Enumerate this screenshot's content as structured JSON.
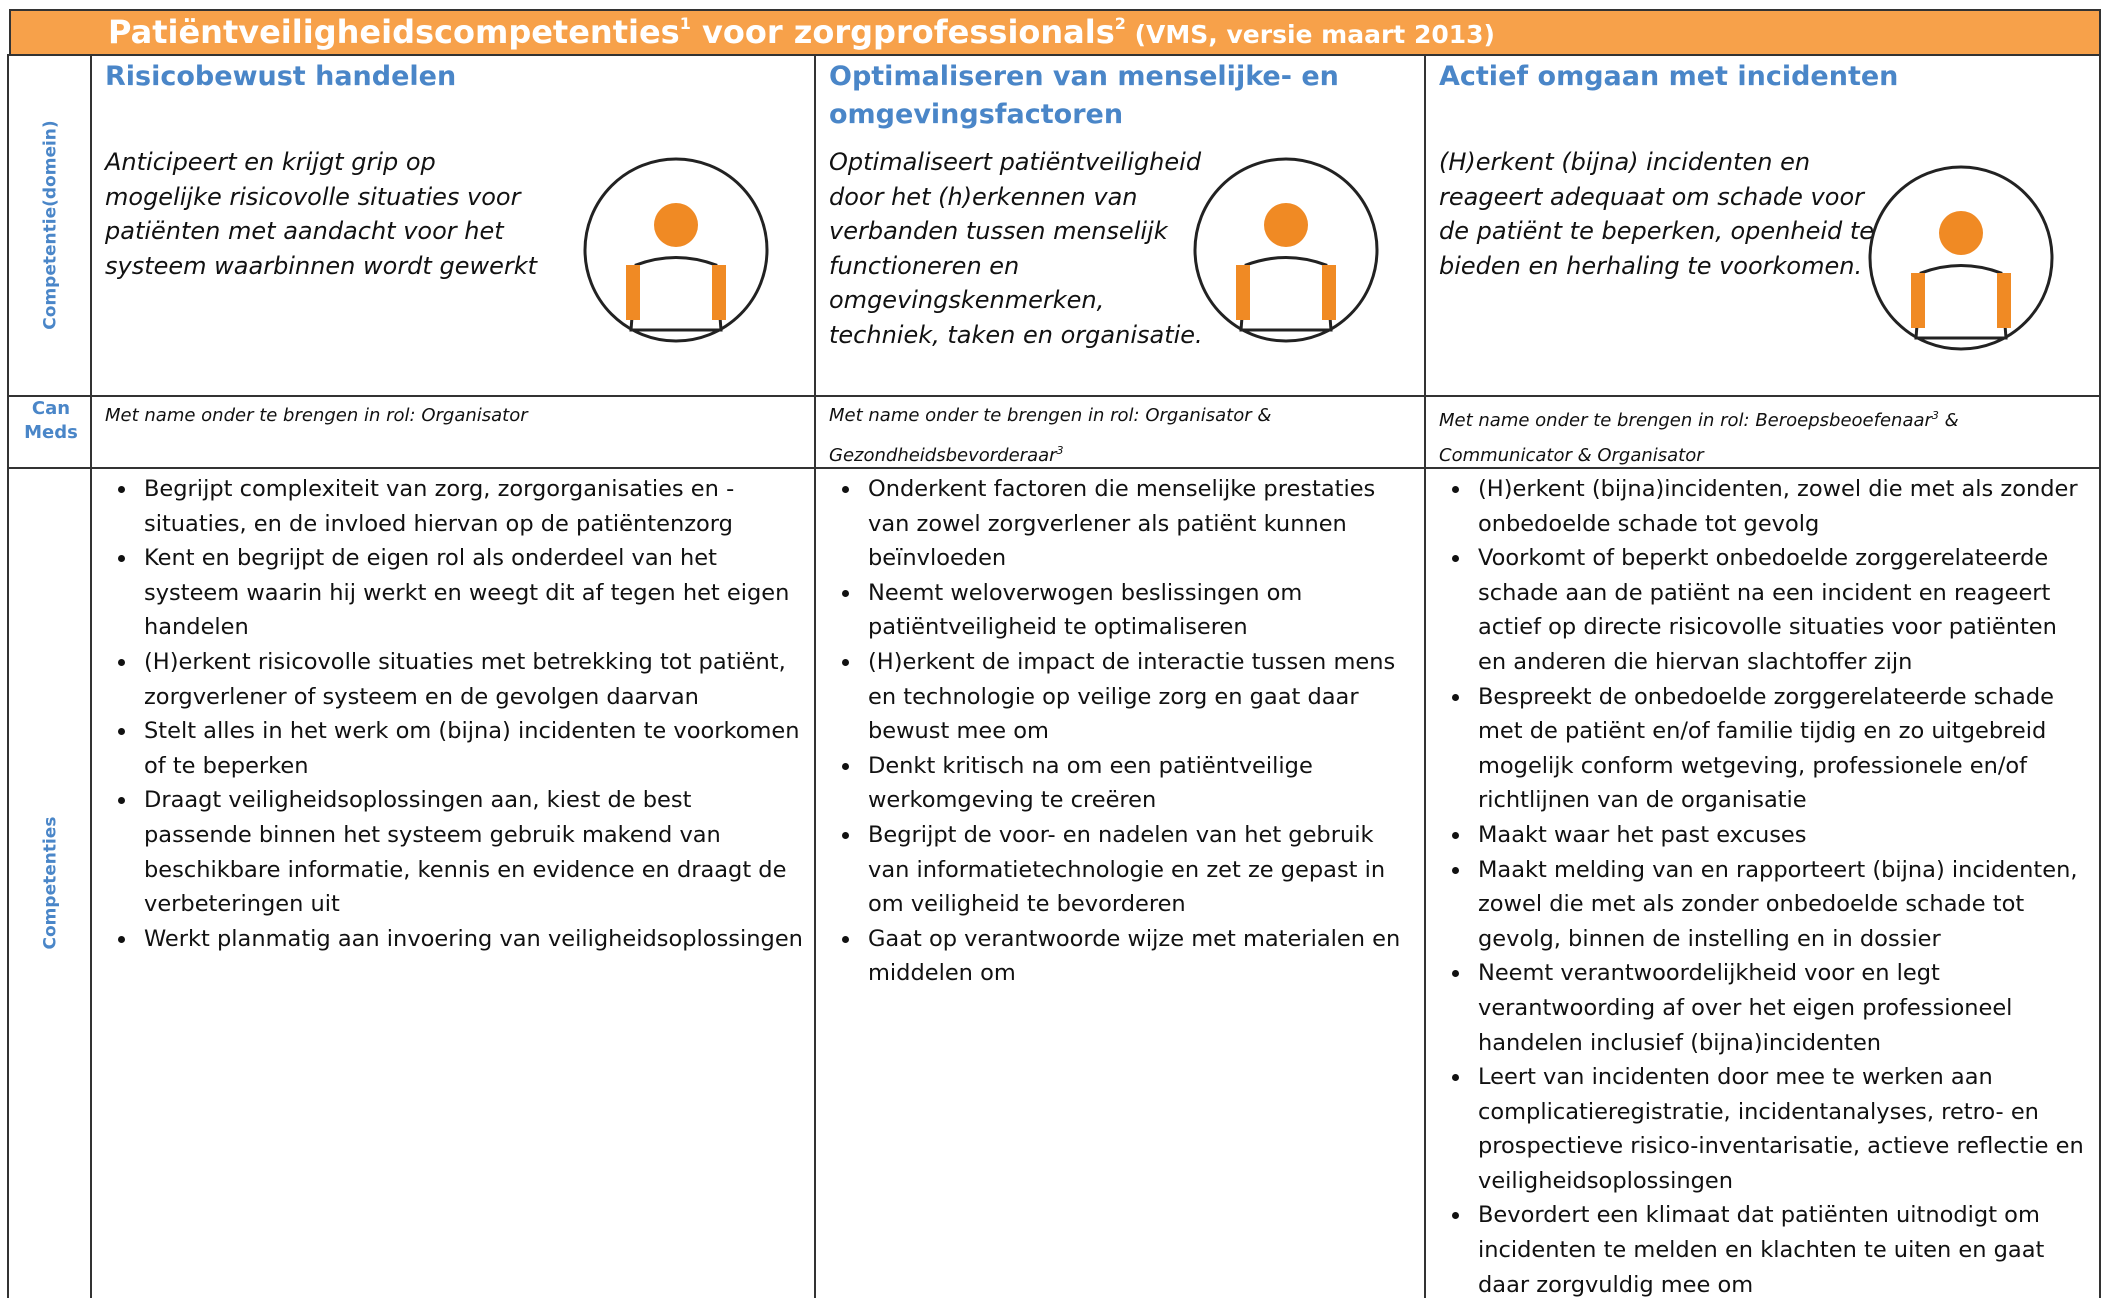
{
  "header": {
    "title": "Patiëntveiligheidscompetenties",
    "title_note": "1",
    "title_mid": " voor zorgprofessionals",
    "title_mid_note": "2",
    "subtitle": " (VMS, versie maart 2013)"
  },
  "row_labels": {
    "domain": "Competentie(domein)",
    "canmeds": "Can Meds",
    "competencies": "Competenties"
  },
  "columns": [
    {
      "heading": "Risicobewust handelen",
      "description": "Anticipeert en krijgt grip op mogelijke risicovolle situaties voor patiënten met aandacht voor het systeem waarbinnen wordt gewerkt",
      "canmeds": {
        "text": "Met name onder te brengen in rol: Organisator"
      },
      "competencies": [
        "Begrijpt complexiteit van zorg,  zorgorganisaties en -situaties, en de invloed hiervan op de patiëntenzorg",
        "Kent en begrijpt de eigen rol als onderdeel van het systeem waarin hij werkt en weegt dit af tegen het eigen handelen",
        "(H)erkent risicovolle situaties met betrekking tot patiënt, zorgverlener of systeem en de gevolgen daarvan",
        "Stelt alles in het werk om (bijna) incidenten te voorkomen of te beperken",
        "Draagt veiligheidsoplossingen aan, kiest de best passende binnen het systeem gebruik makend van beschikbare informatie, kennis en evidence en draagt de verbeteringen uit",
        "Werkt planmatig aan invoering van veiligheidsoplossingen"
      ]
    },
    {
      "heading": "Optimaliseren van menselijke- en omgevingsfactoren",
      "description": "Optimaliseert patiëntveiligheid door het (h)erkennen van verbanden tussen menselijk functioneren en omgevingskenmerken, techniek, taken en organisatie.",
      "canmeds": {
        "text": "Met name onder te brengen in rol: Organisator & Gezondheidsbevorderaar",
        "note": "3"
      },
      "competencies": [
        "Onderkent factoren die menselijke prestaties van zowel zorgverlener als patiënt kunnen beïnvloeden",
        "Neemt weloverwogen beslissingen om patiëntveiligheid te optimaliseren",
        "(H)erkent de impact de interactie tussen mens en technologie op veilige zorg en gaat daar bewust mee om",
        "Denkt kritisch na om een patiëntveilige werkomgeving te creëren",
        "Begrijpt de voor- en nadelen van het gebruik van informatietechnologie en zet ze gepast in om veiligheid te bevorderen",
        "Gaat op verantwoorde wijze met materialen en middelen om"
      ]
    },
    {
      "heading": "Actief omgaan met incidenten",
      "description": "(H)erkent (bijna) incidenten en reageert adequaat om schade voor de patiënt te beperken, openheid te bieden en herhaling te voorkomen.",
      "canmeds": {
        "text": "Met name onder te brengen in rol: Beroepsbeoefenaar",
        "note": "3",
        "after": " & Communicator  & Organisator"
      },
      "competencies": [
        "(H)erkent (bijna)incidenten, zowel die met als zonder onbedoelde schade tot gevolg",
        "Voorkomt of beperkt onbedoelde zorggerelateerde schade aan de patiënt na een incident en reageert actief op directe risicovolle situaties voor patiënten en anderen die hiervan slachtoffer zijn",
        "Bespreekt de onbedoelde zorggerelateerde schade met de patiënt en/of familie tijdig en zo uitgebreid mogelijk conform wetgeving, professionele en/of richtlijnen van de organisatie",
        "Maakt waar het past excuses",
        "Maakt melding van en rapporteert (bijna) incidenten, zowel die met als zonder onbedoelde schade tot gevolg, binnen de instelling en in dossier",
        "Neemt verantwoordelijkheid voor en legt verantwoording af over het eigen professioneel handelen inclusief (bijna)incidenten",
        "Leert van incidenten door mee te werken aan complicatieregistratie, incidentanalyses, retro- en prospectieve risico-inventarisatie, actieve reflectie en veiligheidsoplossingen",
        "Bevordert een klimaat dat patiënten uitnodigt om incidenten te melden en klachten te uiten en gaat daar zorgvuldig mee om"
      ]
    }
  ]
}
